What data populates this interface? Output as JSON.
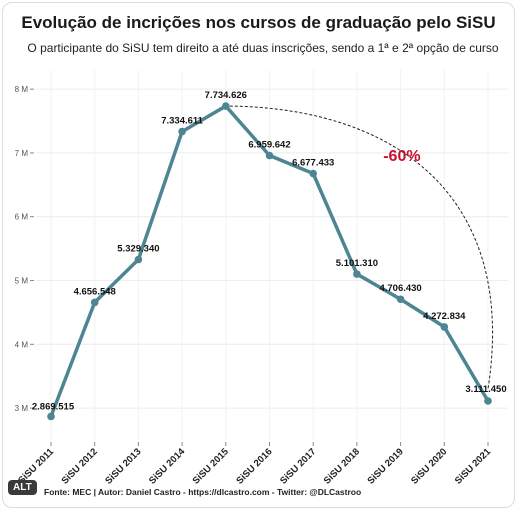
{
  "title": "Evolução de incrições nos cursos de graduação pelo SiSU",
  "subtitle": "O participante do SiSU tem direito a até duas inscrições, sendo a 1ª e 2ª opção de curso",
  "source": "Fonte: MEC | Autor: Daniel Castro - https://dlcastro.com - Twitter: @DLCastroo",
  "alt_badge": "ALT",
  "chart_data": {
    "type": "line",
    "title": "Evolução de incrições nos cursos de graduação pelo SiSU",
    "xlabel": "",
    "ylabel": "",
    "categories": [
      "SiSU 2011",
      "SiSU 2012",
      "SiSU 2013",
      "SiSU 2014",
      "SiSU 2015",
      "SiSU 2016",
      "SiSU 2017",
      "SiSU 2018",
      "SiSU 2019",
      "SiSU 2020",
      "SiSU 2021"
    ],
    "values": [
      2869515,
      4656548,
      5329340,
      7334611,
      7734626,
      6959642,
      6677433,
      5101310,
      4706430,
      4272834,
      3111450
    ],
    "data_labels": [
      "2.869.515",
      "4.656.548",
      "5.329.340",
      "7.334.611",
      "7.734.626",
      "6.959.642",
      "6.677.433",
      "5.101.310",
      "4.706.430",
      "4.272.834",
      "3.111.450"
    ],
    "yticks": [
      3000000,
      4000000,
      5000000,
      6000000,
      7000000,
      8000000
    ],
    "ytick_labels": [
      "3 M",
      "4 M",
      "5 M",
      "6 M",
      "7 M",
      "8 M"
    ],
    "ylim": [
      2500000,
      8300000
    ],
    "grid": true,
    "legend": "none",
    "line_color": "#4e8593",
    "annotation": {
      "text": "-60%",
      "color": "#c8102e",
      "from": "SiSU 2015",
      "to": "SiSU 2021"
    }
  }
}
